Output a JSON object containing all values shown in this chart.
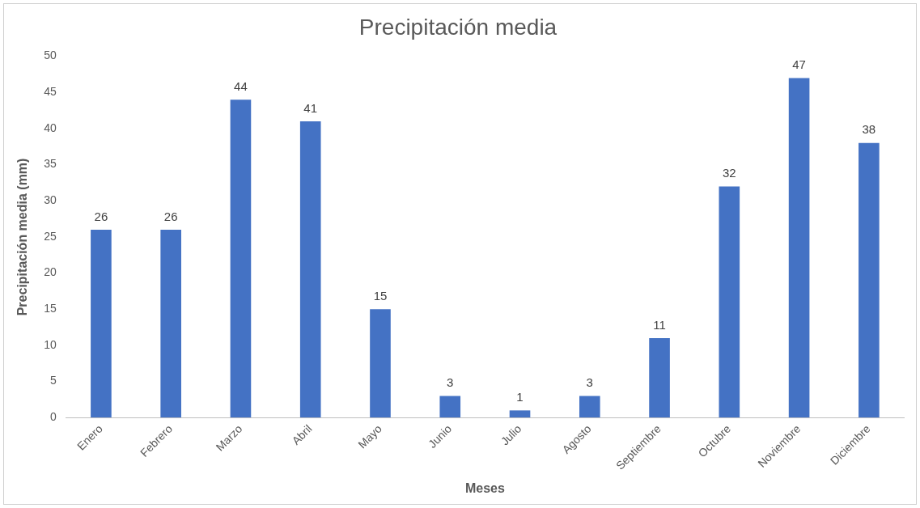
{
  "chart_data": {
    "type": "bar",
    "title": "Precipitación media",
    "xlabel": "Meses",
    "ylabel": "Precipitación media (mm)",
    "categories": [
      "Enero",
      "Febrero",
      "Marzo",
      "Abril",
      "Mayo",
      "Junio",
      "Julio",
      "Agosto",
      "Septiembre",
      "Octubre",
      "Noviembre",
      "Diciembre"
    ],
    "values": [
      26,
      26,
      44,
      41,
      15,
      3,
      1,
      3,
      11,
      32,
      47,
      38
    ],
    "color": "#4472c4",
    "ylim": [
      0,
      50
    ],
    "yticks": [
      0,
      5,
      10,
      15,
      20,
      25,
      30,
      35,
      40,
      45,
      50
    ],
    "grid": false,
    "legend": false,
    "data_labels": true
  }
}
